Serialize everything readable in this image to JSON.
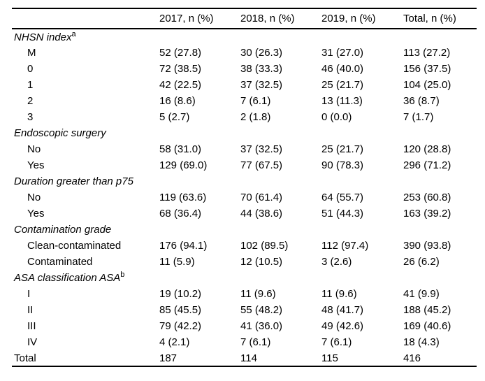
{
  "colors": {
    "background": "#ffffff",
    "text": "#000000",
    "rule": "#000000"
  },
  "table": {
    "columns": [
      "",
      "2017, n (%)",
      "2018, n (%)",
      "2019, n (%)",
      "Total, n (%)"
    ],
    "sections": [
      {
        "label": "NHSN index",
        "superscript": "a",
        "rows": [
          {
            "label": "M",
            "values": [
              "52 (27.8)",
              "30 (26.3)",
              "31 (27.0)",
              "113 (27.2)"
            ]
          },
          {
            "label": "0",
            "values": [
              "72 (38.5)",
              "38 (33.3)",
              "46 (40.0)",
              "156 (37.5)"
            ]
          },
          {
            "label": "1",
            "values": [
              "42 (22.5)",
              "37 (32.5)",
              "25 (21.7)",
              "104 (25.0)"
            ]
          },
          {
            "label": "2",
            "values": [
              "16 (8.6)",
              "7 (6.1)",
              "13 (11.3)",
              "36 (8.7)"
            ]
          },
          {
            "label": "3",
            "values": [
              "5 (2.7)",
              "2 (1.8)",
              "0 (0.0)",
              "7 (1.7)"
            ]
          }
        ]
      },
      {
        "label": "Endoscopic surgery",
        "superscript": "",
        "rows": [
          {
            "label": "No",
            "values": [
              "58 (31.0)",
              "37 (32.5)",
              "25 (21.7)",
              "120 (28.8)"
            ]
          },
          {
            "label": "Yes",
            "values": [
              "129 (69.0)",
              "77 (67.5)",
              "90 (78.3)",
              "296 (71.2)"
            ]
          }
        ]
      },
      {
        "label": "Duration greater than p75",
        "superscript": "",
        "rows": [
          {
            "label": "No",
            "values": [
              "119 (63.6)",
              "70 (61.4)",
              "64 (55.7)",
              "253 (60.8)"
            ]
          },
          {
            "label": "Yes",
            "values": [
              "68 (36.4)",
              "44 (38.6)",
              "51 (44.3)",
              "163 (39.2)"
            ]
          }
        ]
      },
      {
        "label": "Contamination grade",
        "superscript": "",
        "rows": [
          {
            "label": "Clean-contaminated",
            "values": [
              "176 (94.1)",
              "102 (89.5)",
              "112 (97.4)",
              "390 (93.8)"
            ]
          },
          {
            "label": "Contaminated",
            "values": [
              "11 (5.9)",
              "12 (10.5)",
              "3 (2.6)",
              "26 (6.2)"
            ]
          }
        ]
      },
      {
        "label": "ASA classification ASA",
        "superscript": "b",
        "rows": [
          {
            "label": "I",
            "values": [
              "19 (10.2)",
              "11 (9.6)",
              "11 (9.6)",
              "41 (9.9)"
            ]
          },
          {
            "label": "II",
            "values": [
              "85 (45.5)",
              "55 (48.2)",
              "48 (41.7)",
              "188 (45.2)"
            ]
          },
          {
            "label": "III",
            "values": [
              "79 (42.2)",
              "41 (36.0)",
              "49 (42.6)",
              "169 (40.6)"
            ]
          },
          {
            "label": "IV",
            "values": [
              "4 (2.1)",
              "7 (6.1)",
              "7 (6.1)",
              "18 (4.3)"
            ]
          }
        ]
      }
    ],
    "footer": {
      "label": "Total",
      "values": [
        "187",
        "114",
        "115",
        "416"
      ]
    }
  }
}
